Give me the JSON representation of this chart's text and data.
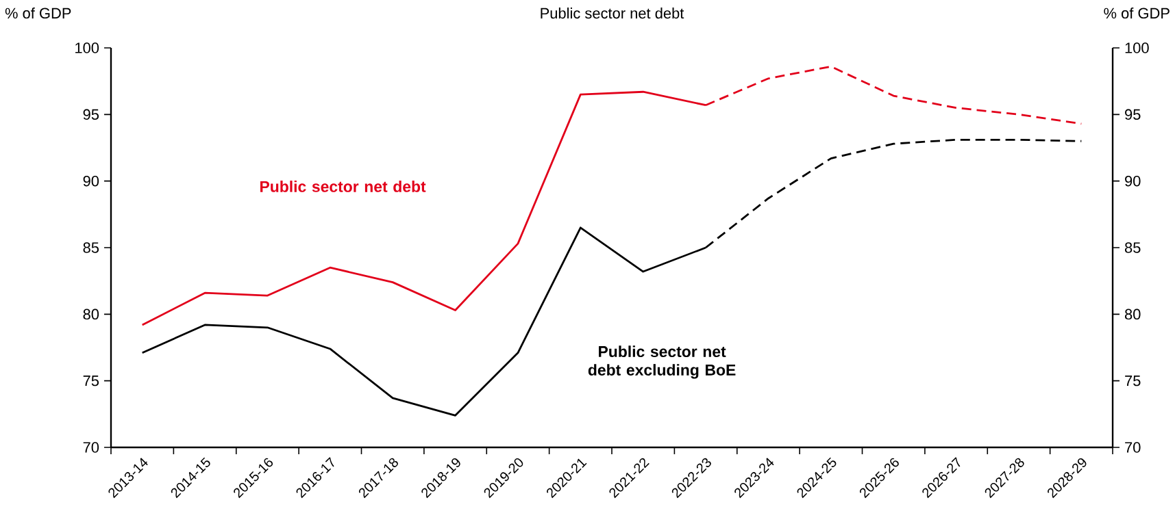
{
  "chart_data": {
    "type": "line",
    "title": "Public sector net debt",
    "ylabel": "% of GDP",
    "y2label": "% of GDP",
    "categories": [
      "2013-14",
      "2014-15",
      "2015-16",
      "2016-17",
      "2017-18",
      "2018-19",
      "2019-20",
      "2020-21",
      "2021-22",
      "2022-23",
      "2023-24",
      "2024-25",
      "2025-26",
      "2026-27",
      "2027-28",
      "2028-29"
    ],
    "series": [
      {
        "name": "Public sector net debt",
        "color": "#e2001a",
        "line_style": "solid",
        "values": [
          79.2,
          81.6,
          81.4,
          83.5,
          82.4,
          80.3,
          85.3,
          96.5,
          96.7,
          95.7,
          null,
          null,
          null,
          null,
          null,
          null
        ]
      },
      {
        "color": "#e2001a",
        "line_style": "dashed",
        "values": [
          null,
          null,
          null,
          null,
          null,
          null,
          null,
          null,
          null,
          95.7,
          97.7,
          98.6,
          96.4,
          95.5,
          95.0,
          94.3
        ]
      },
      {
        "name": "Public sector net debt excluding BoE",
        "color": "#000000",
        "line_style": "solid",
        "values": [
          77.1,
          79.2,
          79.0,
          77.4,
          73.7,
          72.4,
          77.1,
          86.5,
          83.2,
          85.0,
          null,
          null,
          null,
          null,
          null,
          null
        ]
      },
      {
        "color": "#000000",
        "line_style": "dashed",
        "values": [
          null,
          null,
          null,
          null,
          null,
          null,
          null,
          null,
          null,
          85.0,
          88.7,
          91.7,
          92.8,
          93.1,
          93.1,
          93.0
        ]
      }
    ],
    "ylim": [
      70,
      100
    ],
    "yticks": [
      70,
      75,
      80,
      85,
      90,
      95,
      100
    ],
    "y2lim": [
      70,
      100
    ],
    "y2ticks": [
      70,
      75,
      80,
      85,
      90,
      95,
      100
    ],
    "grid": false
  }
}
